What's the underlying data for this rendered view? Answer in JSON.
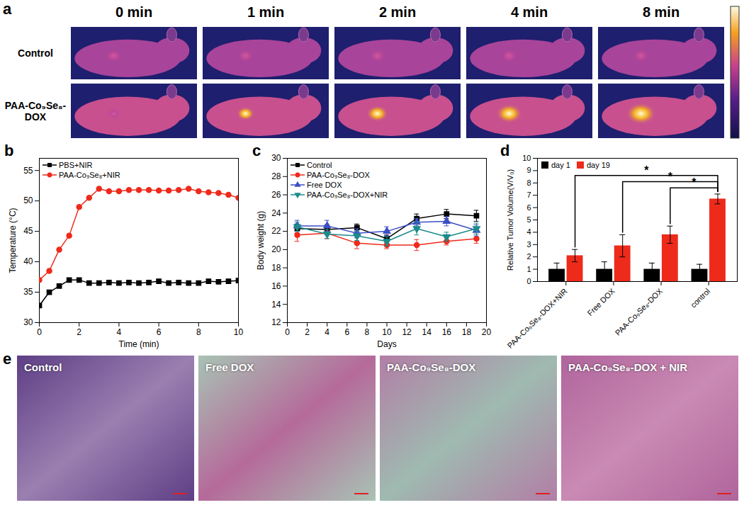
{
  "chart_data": [
    {
      "panel": "b",
      "type": "line",
      "xlabel": "Time (min)",
      "ylabel": "Temperature (°C)",
      "x": [
        0,
        0.5,
        1,
        1.5,
        2,
        2.5,
        3,
        3.5,
        4,
        4.5,
        5,
        5.5,
        6,
        6.5,
        7,
        7.5,
        8,
        8.5,
        9,
        9.5,
        10
      ],
      "xlim": [
        0,
        10
      ],
      "xticks": [
        0,
        2,
        4,
        6,
        8,
        10
      ],
      "ylim": [
        30,
        57
      ],
      "yticks": [
        30,
        35,
        40,
        45,
        50,
        55
      ],
      "legend": "top-left",
      "series": [
        {
          "name": "PBS+NIR",
          "color": "#000000",
          "marker": "square",
          "values": [
            32.8,
            35.0,
            36.0,
            37.0,
            37.0,
            36.5,
            36.5,
            36.6,
            36.5,
            36.6,
            36.5,
            36.6,
            36.8,
            36.5,
            36.6,
            36.5,
            36.5,
            36.8,
            36.7,
            36.8,
            36.9
          ]
        },
        {
          "name": "PAA-Co₉Se₈+NIR",
          "color": "#ee2a1b",
          "marker": "circle",
          "values": [
            37.0,
            38.5,
            42.0,
            44.3,
            49.0,
            50.5,
            52.0,
            51.6,
            51.6,
            51.8,
            51.8,
            51.8,
            51.7,
            51.7,
            51.8,
            52.0,
            51.6,
            51.4,
            51.3,
            51.0,
            50.5
          ]
        }
      ]
    },
    {
      "panel": "c",
      "type": "line",
      "xlabel": "Days",
      "ylabel": "Body weight (g)",
      "x": [
        1,
        4,
        7,
        10,
        13,
        16,
        19
      ],
      "xlim": [
        0,
        20
      ],
      "xticks": [
        0,
        2,
        4,
        6,
        8,
        10,
        12,
        14,
        16,
        18,
        20
      ],
      "ylim": [
        12,
        30
      ],
      "yticks": [
        12,
        14,
        16,
        18,
        20,
        22,
        24,
        26,
        28,
        30
      ],
      "legend": "top-left",
      "series": [
        {
          "name": "Control",
          "color": "#000000",
          "marker": "square",
          "values": [
            22.3,
            22.2,
            22.4,
            21.2,
            23.4,
            23.9,
            23.7
          ],
          "errors": [
            0.5,
            0.5,
            0.4,
            0.4,
            0.5,
            0.5,
            0.6
          ]
        },
        {
          "name": "PAA-Co₉Se₈-DOX",
          "color": "#ee2a1b",
          "marker": "circle",
          "values": [
            21.6,
            21.8,
            20.7,
            20.5,
            20.5,
            20.9,
            21.2
          ],
          "errors": [
            0.7,
            0.6,
            0.6,
            0.4,
            0.6,
            0.4,
            0.5
          ]
        },
        {
          "name": "Free DOX",
          "color": "#3d4fc4",
          "marker": "triangle",
          "values": [
            22.6,
            22.6,
            21.8,
            22.0,
            23.0,
            23.1,
            22.1
          ],
          "errors": [
            0.6,
            0.6,
            0.5,
            0.5,
            0.4,
            0.5,
            0.6
          ]
        },
        {
          "name": "PAA-Co₉Se₈-DOX+NIR",
          "color": "#1b8b8b",
          "marker": "triangle-down",
          "values": [
            22.5,
            21.7,
            21.5,
            20.9,
            22.3,
            21.4,
            22.3
          ],
          "errors": [
            0.5,
            0.5,
            0.5,
            0.5,
            0.7,
            0.5,
            0.6
          ]
        }
      ]
    },
    {
      "panel": "d",
      "type": "bar",
      "ylabel": "Relative Tumor Volume(V/V₀)",
      "categories": [
        "PAA-Co₉Se₈-DOX+NIR",
        "Free DOX",
        "PAA-Co₉Se₈-DOX",
        "control"
      ],
      "ylim": [
        0,
        10
      ],
      "yticks": [
        0,
        1,
        2,
        3,
        4,
        5,
        6,
        7,
        8,
        9,
        10
      ],
      "legend": "top-left",
      "series": [
        {
          "name": "day 1",
          "color": "#000000",
          "values": [
            1,
            1,
            1,
            1
          ],
          "errors": [
            0.5,
            0.6,
            0.5,
            0.4
          ]
        },
        {
          "name": "day 19",
          "color": "#ee2a1b",
          "values": [
            2.1,
            2.9,
            3.8,
            6.7
          ],
          "errors": [
            0.5,
            0.9,
            0.7,
            0.4
          ]
        }
      ],
      "annotations": [
        {
          "text": "*",
          "from": "PAA-Co₉Se₈-DOX+NIR",
          "to": "control"
        },
        {
          "text": "*",
          "from": "Free DOX",
          "to": "control"
        },
        {
          "text": "*",
          "from": "PAA-Co₉Se₈-DOX",
          "to": "control"
        }
      ]
    }
  ],
  "images": {
    "a": {
      "panel": "a",
      "columns": [
        "0 min",
        "1 min",
        "2 min",
        "4 min",
        "8 min"
      ],
      "rows": [
        "Control",
        "PAA-Co₉Se₈-DOX"
      ]
    },
    "e": {
      "panel": "e",
      "labels": [
        "Control",
        "Free DOX",
        "PAA-Co₉Se₈-DOX",
        "PAA-Co₉Se₈-DOX + NIR"
      ]
    }
  }
}
